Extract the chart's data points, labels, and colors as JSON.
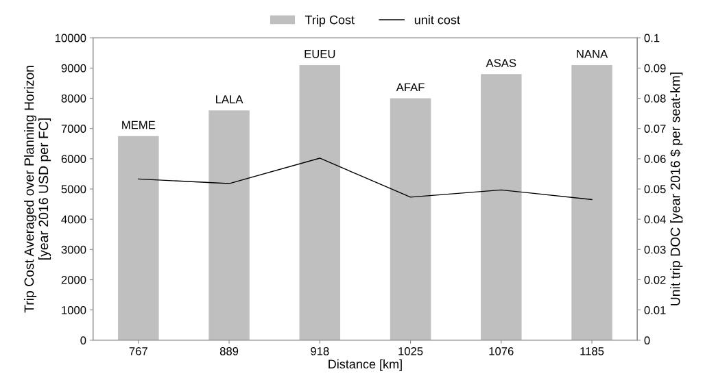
{
  "chart_data": {
    "type": "bar",
    "xlabel": "Distance [km]",
    "ylabel": "Trip Cost Averaged over Planning Horizon\n[year 2016 USD per FC]",
    "y2label": "Unit trip DOC [year 2016 $ per seat-km]",
    "categories": [
      "767",
      "889",
      "918",
      "1025",
      "1076",
      "1185"
    ],
    "series": [
      {
        "name": "Trip Cost",
        "color": "#bfbfbf",
        "values": [
          6750,
          7600,
          9100,
          8000,
          8800,
          9100
        ]
      },
      {
        "name": "unit cost",
        "type": "line",
        "axis": "y2",
        "color": "#000000",
        "values": [
          0.0533,
          0.0518,
          0.0602,
          0.0473,
          0.0497,
          0.0465
        ]
      }
    ],
    "ylim": [
      0,
      10000
    ],
    "yticks": [
      0,
      1000,
      2000,
      3000,
      4000,
      5000,
      6000,
      7000,
      8000,
      9000,
      10000
    ],
    "y2lim": [
      0,
      0.1
    ],
    "y2ticks": [
      0,
      0.01,
      0.02,
      0.03,
      0.04,
      0.05,
      0.06,
      0.07,
      0.08,
      0.09,
      0.1
    ],
    "annotations": [
      {
        "text": "MEME",
        "x": "767",
        "y": 6750
      },
      {
        "text": "LALA",
        "x": "889",
        "y": 7600
      },
      {
        "text": "EUEU",
        "x": "918",
        "y": 9100
      },
      {
        "text": "AFAF",
        "x": "1025",
        "y": 8000
      },
      {
        "text": "ASAS",
        "x": "1076",
        "y": 8800
      },
      {
        "text": "NANA",
        "x": "1185",
        "y": 9100
      }
    ],
    "grid": false,
    "legend": "top",
    "marker": "none",
    "line_style": "solid"
  }
}
